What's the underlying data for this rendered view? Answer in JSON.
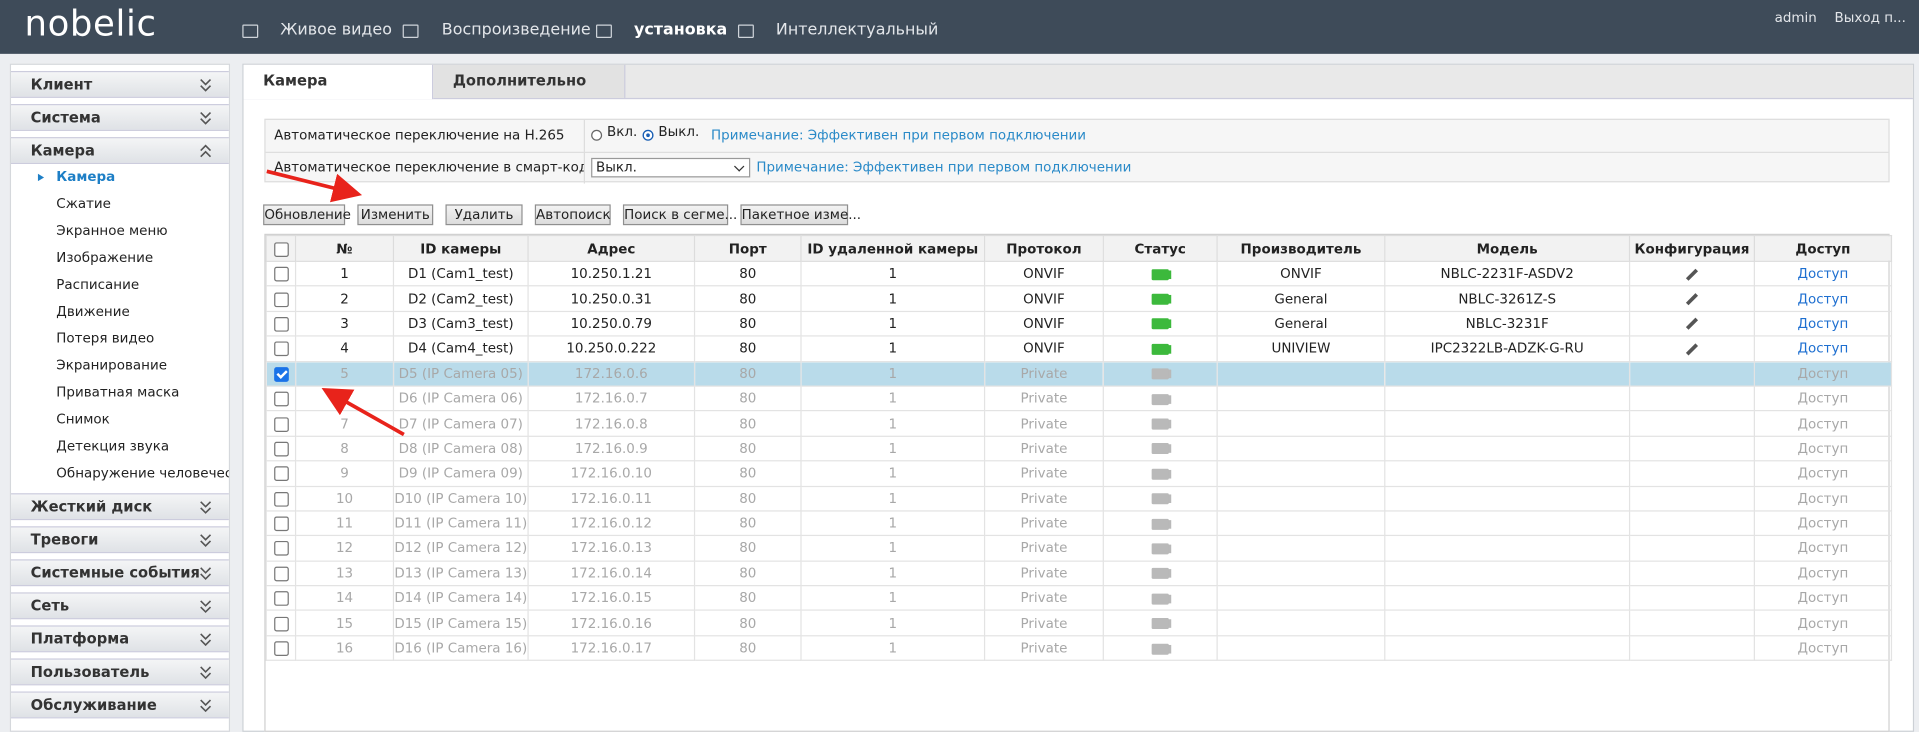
{
  "header": {
    "logo": "nobelic",
    "nav": [
      "Живое видео",
      "Воспроизведение",
      "установка",
      "Интеллектуальный"
    ],
    "active_nav": 2,
    "user": "admin",
    "logout": "Выход п..."
  },
  "sidebar": [
    {
      "label": "Клиент"
    },
    {
      "label": "Система"
    },
    {
      "label": "Камера",
      "items": [
        "Камера",
        "Сжатие",
        "Экранное меню",
        "Изображение",
        "Расписание",
        "Движение",
        "Потеря видео",
        "Экранирование",
        "Приватная маска",
        "Снимок",
        "Детекция звука",
        "Обнаружение человеческо..."
      ],
      "active_item": 0
    },
    {
      "label": "Жесткий диск"
    },
    {
      "label": "Тревоги"
    },
    {
      "label": "Системные события"
    },
    {
      "label": "Сеть"
    },
    {
      "label": "Платформа"
    },
    {
      "label": "Пользователь"
    },
    {
      "label": "Обслуживание"
    }
  ],
  "tabs": [
    "Камера",
    "Дополнительно"
  ],
  "settings": [
    {
      "label": "Автоматическое переключение на H.265",
      "options": [
        "Вкл.",
        "Выкл."
      ],
      "selected": 1,
      "note": "Примечание: Эффективен при первом подключении"
    },
    {
      "label": "Автоматическое переключение в смарт-кодиро...",
      "select": "Выкл.",
      "note": "Примечание: Эффективен при первом подключении"
    }
  ],
  "buttons": [
    "Обновление",
    "Изменить",
    "Удалить",
    "Автопоиск",
    "Поиск в сегме...",
    "Пакетное изме..."
  ],
  "table": {
    "headers": [
      "№",
      "ID камеры",
      "Адрес",
      "Порт",
      "ID удаленной камеры",
      "Протокол",
      "Статус",
      "Производитель",
      "Модель",
      "Конфигурация",
      "Доступ"
    ],
    "access_label": "Доступ",
    "rows": [
      {
        "no": 1,
        "id": "D1 (Cam1_test)",
        "address": "10.250.1.21",
        "port": 80,
        "remote_id": 1,
        "protocol": "ONVIF",
        "online": true,
        "manufacturer": "ONVIF",
        "model": "NBLC-2231F-ASDV2",
        "checked": false
      },
      {
        "no": 2,
        "id": "D2 (Cam2_test)",
        "address": "10.250.0.31",
        "port": 80,
        "remote_id": 1,
        "protocol": "ONVIF",
        "online": true,
        "manufacturer": "General",
        "model": "NBLC-3261Z-S",
        "checked": false
      },
      {
        "no": 3,
        "id": "D3 (Cam3_test)",
        "address": "10.250.0.79",
        "port": 80,
        "remote_id": 1,
        "protocol": "ONVIF",
        "online": true,
        "manufacturer": "General",
        "model": "NBLC-3231F",
        "checked": false
      },
      {
        "no": 4,
        "id": "D4 (Cam4_test)",
        "address": "10.250.0.222",
        "port": 80,
        "remote_id": 1,
        "protocol": "ONVIF",
        "online": true,
        "manufacturer": "UNIVIEW",
        "model": "IPC2322LB-ADZK-G-RU",
        "checked": false
      },
      {
        "no": 5,
        "id": "D5 (IP Camera 05)",
        "address": "172.16.0.6",
        "port": 80,
        "remote_id": 1,
        "protocol": "Private",
        "online": false,
        "checked": true
      },
      {
        "no": 6,
        "id": "D6 (IP Camera 06)",
        "address": "172.16.0.7",
        "port": 80,
        "remote_id": 1,
        "protocol": "Private",
        "online": false,
        "checked": false
      },
      {
        "no": 7,
        "id": "D7 (IP Camera 07)",
        "address": "172.16.0.8",
        "port": 80,
        "remote_id": 1,
        "protocol": "Private",
        "online": false,
        "checked": false
      },
      {
        "no": 8,
        "id": "D8 (IP Camera 08)",
        "address": "172.16.0.9",
        "port": 80,
        "remote_id": 1,
        "protocol": "Private",
        "online": false,
        "checked": false
      },
      {
        "no": 9,
        "id": "D9 (IP Camera 09)",
        "address": "172.16.0.10",
        "port": 80,
        "remote_id": 1,
        "protocol": "Private",
        "online": false,
        "checked": false
      },
      {
        "no": 10,
        "id": "D10 (IP Camera 10)",
        "address": "172.16.0.11",
        "port": 80,
        "remote_id": 1,
        "protocol": "Private",
        "online": false,
        "checked": false
      },
      {
        "no": 11,
        "id": "D11 (IP Camera 11)",
        "address": "172.16.0.12",
        "port": 80,
        "remote_id": 1,
        "protocol": "Private",
        "online": false,
        "checked": false
      },
      {
        "no": 12,
        "id": "D12 (IP Camera 12)",
        "address": "172.16.0.13",
        "port": 80,
        "remote_id": 1,
        "protocol": "Private",
        "online": false,
        "checked": false
      },
      {
        "no": 13,
        "id": "D13 (IP Camera 13)",
        "address": "172.16.0.14",
        "port": 80,
        "remote_id": 1,
        "protocol": "Private",
        "online": false,
        "checked": false
      },
      {
        "no": 14,
        "id": "D14 (IP Camera 14)",
        "address": "172.16.0.15",
        "port": 80,
        "remote_id": 1,
        "protocol": "Private",
        "online": false,
        "checked": false
      },
      {
        "no": 15,
        "id": "D15 (IP Camera 15)",
        "address": "172.16.0.16",
        "port": 80,
        "remote_id": 1,
        "protocol": "Private",
        "online": false,
        "checked": false
      },
      {
        "no": 16,
        "id": "D16 (IP Camera 16)",
        "address": "172.16.0.17",
        "port": 80,
        "remote_id": 1,
        "protocol": "Private",
        "online": false,
        "checked": false
      }
    ]
  }
}
